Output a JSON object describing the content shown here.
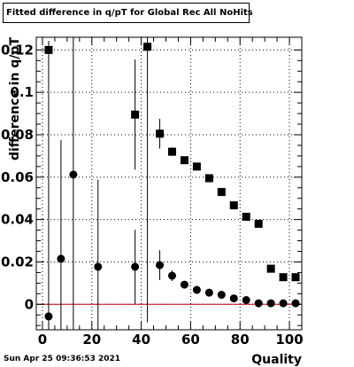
{
  "footer": {
    "timestamp": "Sun Apr 25 09:36:53 2021"
  },
  "chart_data": {
    "type": "scatter",
    "title": "Fitted difference in q/pT for Global Rec All NoHits",
    "xlabel": "Quality",
    "ylabel": "difference in q/pT",
    "xlim": [
      -2.5,
      105
    ],
    "ylim": [
      -0.012,
      0.126
    ],
    "xticks": [
      0,
      20,
      40,
      60,
      80,
      100
    ],
    "yticks": [
      0,
      0.02,
      0.04,
      0.06,
      0.08,
      0.1,
      0.12
    ],
    "ytick_labels": [
      "0",
      "0.02",
      "0.04",
      "0.06",
      "0.08",
      "0.1",
      "0.12"
    ],
    "grid": true,
    "reference_line": {
      "y": 0,
      "color": "#cc0000"
    },
    "series": [
      {
        "marker": "square",
        "color": "#000000",
        "points": [
          {
            "x": 2.5,
            "y": 0.12,
            "err": 0.0
          },
          {
            "x": 37.5,
            "y": 0.0895,
            "err": 0.026
          },
          {
            "x": 42.5,
            "y": 0.1215,
            "err": 0.0
          },
          {
            "x": 47.5,
            "y": 0.0805,
            "err": 0.007
          },
          {
            "x": 52.5,
            "y": 0.072,
            "err": 0.002
          },
          {
            "x": 57.5,
            "y": 0.068,
            "err": 0.0015
          },
          {
            "x": 62.5,
            "y": 0.065,
            "err": 0.0013
          },
          {
            "x": 67.5,
            "y": 0.0595,
            "err": 0.0012
          },
          {
            "x": 72.5,
            "y": 0.053,
            "err": 0.0012
          },
          {
            "x": 77.5,
            "y": 0.0467,
            "err": 0.0012
          },
          {
            "x": 82.5,
            "y": 0.0413,
            "err": 0.0012
          },
          {
            "x": 87.5,
            "y": 0.038,
            "err": 0.0012
          },
          {
            "x": 92.5,
            "y": 0.0168,
            "err": 0.0012
          },
          {
            "x": 97.5,
            "y": 0.0128,
            "err": 0.0012
          },
          {
            "x": 102.5,
            "y": 0.0128,
            "err": 0.0012
          }
        ]
      },
      {
        "marker": "circle",
        "color": "#000000",
        "points": [
          {
            "x": 2.5,
            "y": -0.0057,
            "err": 0.13
          },
          {
            "x": 7.5,
            "y": 0.0215,
            "err": 0.056
          },
          {
            "x": 12.5,
            "y": 0.0612,
            "err": 0.13
          },
          {
            "x": 22.5,
            "y": 0.0177,
            "err": 0.041
          },
          {
            "x": 37.5,
            "y": 0.0177,
            "err": 0.0175
          },
          {
            "x": 42.5,
            "y": 0.1215,
            "err": 0.13
          },
          {
            "x": 47.5,
            "y": 0.0185,
            "err": 0.007
          },
          {
            "x": 52.5,
            "y": 0.0135,
            "err": 0.0025
          },
          {
            "x": 57.5,
            "y": 0.0093,
            "err": 0.0015
          },
          {
            "x": 62.5,
            "y": 0.0068,
            "err": 0.0012
          },
          {
            "x": 67.5,
            "y": 0.0055,
            "err": 0.001
          },
          {
            "x": 72.5,
            "y": 0.0045,
            "err": 0.001
          },
          {
            "x": 77.5,
            "y": 0.0028,
            "err": 0.001
          },
          {
            "x": 82.5,
            "y": 0.002,
            "err": 0.001
          },
          {
            "x": 87.5,
            "y": 0.0005,
            "err": 0.001
          },
          {
            "x": 92.5,
            "y": 0.0005,
            "err": 0.001
          },
          {
            "x": 97.5,
            "y": 0.0005,
            "err": 0.001
          },
          {
            "x": 102.5,
            "y": 0.0005,
            "err": 0.001
          }
        ]
      }
    ]
  }
}
